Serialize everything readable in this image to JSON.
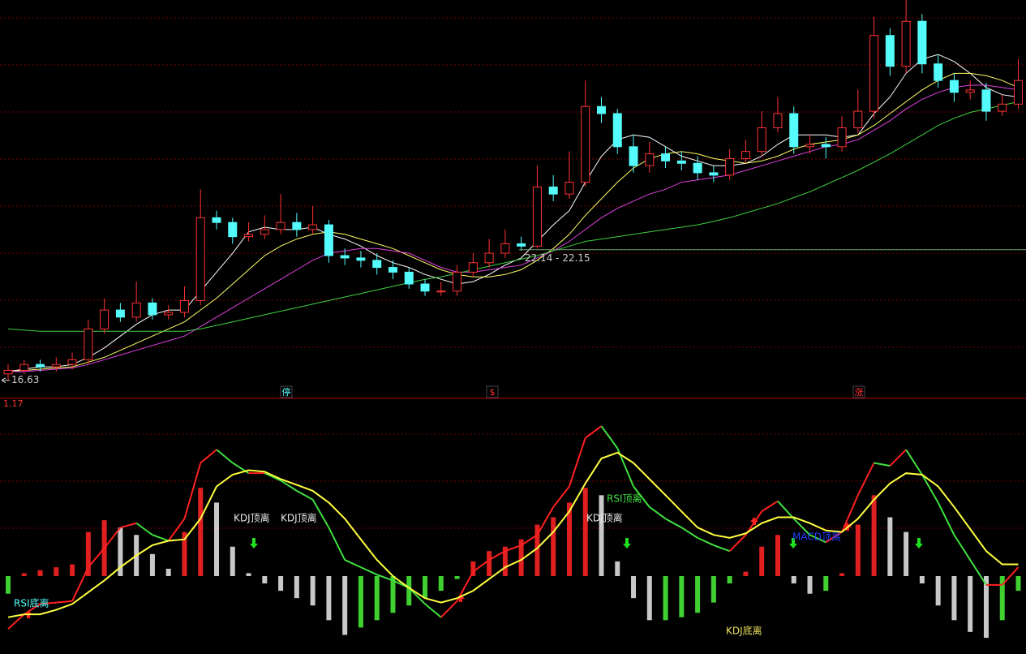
{
  "chart_data": [
    {
      "type": "candlestick",
      "open": [
        16.9,
        17.05,
        17.3,
        17.2,
        17.3,
        17.5,
        18.8,
        19.6,
        19.3,
        19.9,
        19.4,
        19.5,
        20.0,
        23.5,
        23.3,
        22.7,
        22.8,
        23.0,
        23.3,
        23.0,
        23.2,
        21.9,
        21.8,
        21.7,
        21.4,
        21.2,
        20.7,
        20.4,
        20.4,
        21.2,
        21.6,
        22.0,
        22.4,
        22.3,
        24.8,
        24.5,
        25.0,
        28.2,
        27.9,
        26.5,
        25.7,
        26.2,
        25.9,
        25.8,
        25.4,
        25.3,
        26.0,
        26.3,
        27.3,
        27.9,
        26.5,
        26.6,
        26.5,
        27.3,
        28.0,
        31.2,
        29.9,
        31.8,
        30.0,
        29.3,
        28.8,
        28.9,
        28.0,
        28.3
      ],
      "high": [
        17.3,
        17.5,
        17.5,
        17.6,
        17.8,
        19.2,
        20.1,
        19.9,
        20.8,
        20.1,
        19.8,
        20.6,
        24.7,
        23.8,
        23.5,
        23.3,
        23.6,
        24.5,
        23.7,
        24.0,
        23.4,
        22.2,
        22.1,
        22.0,
        21.7,
        21.4,
        20.9,
        20.8,
        21.5,
        22.0,
        22.6,
        23.0,
        22.7,
        25.7,
        25.3,
        26.3,
        29.3,
        28.6,
        28.1,
        27.0,
        26.7,
        26.5,
        26.3,
        26.1,
        25.7,
        26.4,
        26.8,
        28.0,
        28.6,
        28.2,
        27.0,
        26.9,
        27.8,
        28.9,
        32.0,
        31.5,
        32.7,
        32.1,
        30.4,
        29.6,
        29.3,
        29.2,
        28.7,
        30.2
      ],
      "low": [
        16.63,
        16.9,
        17.0,
        17.0,
        17.1,
        17.3,
        18.6,
        19.1,
        19.1,
        19.2,
        19.2,
        19.3,
        19.8,
        23.0,
        22.4,
        22.5,
        22.6,
        22.8,
        22.7,
        22.8,
        21.6,
        21.5,
        21.4,
        21.1,
        20.9,
        20.5,
        20.2,
        20.2,
        20.2,
        21.0,
        21.4,
        21.8,
        22.1,
        22.2,
        24.2,
        24.3,
        24.8,
        27.5,
        26.2,
        25.4,
        25.4,
        25.6,
        25.5,
        25.1,
        25.0,
        25.1,
        25.8,
        26.1,
        27.1,
        26.2,
        26.2,
        26.0,
        26.3,
        27.1,
        27.7,
        29.5,
        29.6,
        29.6,
        29.0,
        28.4,
        28.5,
        27.6,
        27.8,
        28.1
      ],
      "close": [
        17.05,
        17.3,
        17.2,
        17.3,
        17.5,
        18.8,
        19.6,
        19.3,
        19.9,
        19.4,
        19.5,
        20.0,
        23.5,
        23.3,
        22.7,
        22.8,
        23.0,
        23.3,
        23.0,
        23.2,
        21.9,
        21.8,
        21.7,
        21.4,
        21.2,
        20.7,
        20.4,
        20.4,
        21.2,
        21.6,
        22.0,
        22.4,
        22.3,
        24.8,
        24.5,
        25.0,
        28.2,
        27.9,
        26.5,
        25.7,
        26.2,
        25.9,
        25.8,
        25.4,
        25.3,
        26.0,
        26.3,
        27.3,
        27.9,
        26.5,
        26.6,
        26.5,
        27.3,
        28.0,
        31.2,
        29.9,
        31.8,
        30.0,
        29.3,
        28.8,
        28.9,
        28.0,
        28.3,
        29.3
      ],
      "up_color": "#ff3232",
      "down_color": "#54fcfc",
      "ylim": [
        15.9,
        32.7
      ],
      "lines": [
        {
          "color": "#ffffff",
          "values": [
            17.0,
            17.1,
            17.2,
            17.2,
            17.3,
            17.6,
            18.0,
            18.5,
            19.0,
            19.4,
            19.6,
            19.6,
            20.4,
            21.2,
            22.0,
            22.9,
            23.1,
            23.0,
            23.0,
            23.1,
            22.8,
            22.6,
            22.3,
            21.9,
            21.6,
            21.4,
            21.1,
            20.9,
            20.7,
            20.8,
            21.1,
            21.5,
            21.8,
            22.5,
            23.2,
            23.8,
            25.0,
            26.1,
            26.8,
            27.0,
            26.9,
            26.5,
            26.1,
            25.9,
            25.7,
            25.7,
            25.8,
            26.1,
            26.6,
            27.0,
            27.0,
            27.0,
            26.9,
            27.0,
            27.9,
            28.6,
            29.6,
            30.2,
            30.4,
            30.1,
            29.6,
            29.0,
            28.7,
            28.6
          ]
        },
        {
          "color": "#ffff66",
          "values": [
            17.0,
            17.05,
            17.1,
            17.15,
            17.2,
            17.4,
            17.6,
            17.9,
            18.2,
            18.5,
            18.8,
            19.1,
            19.6,
            20.1,
            20.7,
            21.3,
            21.9,
            22.3,
            22.6,
            22.8,
            22.9,
            22.8,
            22.6,
            22.4,
            22.2,
            21.9,
            21.6,
            21.3,
            21.1,
            21.0,
            21.0,
            21.1,
            21.3,
            21.7,
            22.2,
            22.8,
            23.6,
            24.3,
            25.0,
            25.6,
            26.0,
            26.2,
            26.3,
            26.2,
            26.0,
            25.9,
            25.8,
            25.9,
            26.1,
            26.4,
            26.6,
            26.7,
            26.8,
            27.0,
            27.4,
            27.9,
            28.4,
            28.9,
            29.3,
            29.6,
            29.6,
            29.5,
            29.3,
            29.0
          ]
        },
        {
          "color": "#e040e0",
          "values": [
            17.0,
            17.0,
            17.05,
            17.1,
            17.15,
            17.3,
            17.5,
            17.7,
            17.9,
            18.1,
            18.3,
            18.5,
            18.9,
            19.3,
            19.7,
            20.1,
            20.5,
            20.9,
            21.3,
            21.7,
            22.0,
            22.1,
            22.2,
            22.2,
            22.1,
            22.0,
            21.7,
            21.4,
            21.2,
            21.2,
            21.3,
            21.4,
            21.5,
            21.8,
            22.1,
            22.5,
            23.0,
            23.5,
            23.9,
            24.2,
            24.5,
            24.7,
            25.0,
            25.1,
            25.2,
            25.3,
            25.5,
            25.7,
            25.9,
            26.1,
            26.3,
            26.5,
            26.6,
            26.8,
            27.2,
            27.6,
            28.1,
            28.5,
            28.8,
            29.0,
            29.1,
            29.1,
            29.0,
            28.9
          ]
        },
        {
          "color": "#40d040",
          "values": [
            18.8,
            18.75,
            18.7,
            18.7,
            18.7,
            18.7,
            18.7,
            18.7,
            18.7,
            18.7,
            18.7,
            18.7,
            18.8,
            18.95,
            19.1,
            19.25,
            19.4,
            19.55,
            19.7,
            19.85,
            20.0,
            20.15,
            20.3,
            20.45,
            20.6,
            20.75,
            20.9,
            21.0,
            21.15,
            21.3,
            21.45,
            21.6,
            21.75,
            21.9,
            22.1,
            22.3,
            22.5,
            22.6,
            22.7,
            22.8,
            22.9,
            23.0,
            23.1,
            23.2,
            23.35,
            23.5,
            23.7,
            23.9,
            24.1,
            24.35,
            24.6,
            24.9,
            25.2,
            25.5,
            25.85,
            26.2,
            26.6,
            27.0,
            27.4,
            27.7,
            27.95,
            28.1,
            28.25,
            28.4
          ]
        }
      ],
      "low_label": 16.63,
      "level": 22.15,
      "level_label": "22.14 - 22.15",
      "level_color": "#70a070",
      "flags": [
        "停",
        "$",
        "涨"
      ]
    },
    {
      "type": "oscillator",
      "ylim": [
        -0.53,
        1.17
      ],
      "values": [
        -0.12,
        0.02,
        0.04,
        0.06,
        0.08,
        0.3,
        0.38,
        0.33,
        0.28,
        0.15,
        0.05,
        0.3,
        0.6,
        0.5,
        0.2,
        0.02,
        -0.05,
        -0.1,
        -0.15,
        -0.2,
        -0.3,
        -0.4,
        -0.35,
        -0.3,
        -0.25,
        -0.2,
        -0.15,
        -0.1,
        -0.02,
        0.1,
        0.17,
        0.2,
        0.25,
        0.35,
        0.4,
        0.5,
        0.6,
        0.55,
        0.1,
        -0.15,
        -0.3,
        -0.3,
        -0.28,
        -0.25,
        -0.18,
        -0.05,
        0.03,
        0.2,
        0.28,
        -0.05,
        -0.12,
        -0.1,
        0.02,
        0.35,
        0.55,
        0.4,
        0.3,
        -0.05,
        -0.2,
        -0.3,
        -0.38,
        -0.42,
        -0.3,
        -0.1
      ],
      "bar_colors": [
        "#40d030",
        "#e02020",
        "#e02020",
        "#e02020",
        "#e02020",
        "#e02020",
        "#e02020",
        "#c8c8c8",
        "#c8c8c8",
        "#c8c8c8",
        "#c8c8c8",
        "#e02020",
        "#e02020",
        "#c8c8c8",
        "#c8c8c8",
        "#c8c8c8",
        "#c8c8c8",
        "#c8c8c8",
        "#c8c8c8",
        "#c8c8c8",
        "#c8c8c8",
        "#c8c8c8",
        "#40d030",
        "#40d030",
        "#40d030",
        "#40d030",
        "#40d030",
        "#40d030",
        "#40d030",
        "#e02020",
        "#e02020",
        "#e02020",
        "#e02020",
        "#e02020",
        "#e02020",
        "#e02020",
        "#e02020",
        "#c8c8c8",
        "#c8c8c8",
        "#c8c8c8",
        "#c8c8c8",
        "#40d030",
        "#40d030",
        "#40d030",
        "#40d030",
        "#40d030",
        "#e02020",
        "#e02020",
        "#e02020",
        "#c8c8c8",
        "#c8c8c8",
        "#40d030",
        "#e02020",
        "#e02020",
        "#e02020",
        "#c8c8c8",
        "#c8c8c8",
        "#c8c8c8",
        "#c8c8c8",
        "#c8c8c8",
        "#c8c8c8",
        "#c8c8c8",
        "#40d030",
        "#40d030"
      ],
      "series": [
        {
          "rise_color": "#ff2020",
          "fall_color": "#40e040",
          "values": [
            -0.36,
            -0.26,
            -0.19,
            -0.18,
            -0.17,
            0.06,
            0.19,
            0.33,
            0.36,
            0.28,
            0.24,
            0.39,
            0.77,
            0.86,
            0.77,
            0.7,
            0.7,
            0.65,
            0.58,
            0.52,
            0.33,
            0.11,
            0.06,
            0.01,
            -0.03,
            -0.08,
            -0.19,
            -0.28,
            -0.17,
            0.03,
            0.11,
            0.17,
            0.21,
            0.28,
            0.47,
            0.61,
            0.94,
            1.02,
            0.87,
            0.61,
            0.47,
            0.39,
            0.33,
            0.26,
            0.21,
            0.17,
            0.28,
            0.44,
            0.51,
            0.39,
            0.28,
            0.23,
            0.3,
            0.55,
            0.77,
            0.75,
            0.86,
            0.69,
            0.5,
            0.28,
            0.11,
            -0.06,
            -0.06,
            0.06
          ]
        },
        {
          "color": "#ffff40",
          "values": [
            -0.28,
            -0.26,
            -0.26,
            -0.23,
            -0.19,
            -0.11,
            -0.03,
            0.06,
            0.14,
            0.21,
            0.24,
            0.25,
            0.39,
            0.61,
            0.69,
            0.72,
            0.71,
            0.66,
            0.62,
            0.58,
            0.5,
            0.39,
            0.25,
            0.11,
            0,
            -0.08,
            -0.15,
            -0.18,
            -0.15,
            -0.1,
            -0.02,
            0.06,
            0.11,
            0.19,
            0.3,
            0.44,
            0.63,
            0.8,
            0.84,
            0.77,
            0.66,
            0.55,
            0.44,
            0.33,
            0.28,
            0.26,
            0.29,
            0.36,
            0.4,
            0.4,
            0.36,
            0.31,
            0.3,
            0.39,
            0.52,
            0.63,
            0.7,
            0.69,
            0.61,
            0.47,
            0.32,
            0.17,
            0.08,
            0.08
          ]
        }
      ],
      "annotations": [
        "RSI底离",
        "KDJ顶离",
        "KDJ顶离",
        "RSI顶离",
        "KDJ顶离",
        "MACD顶离",
        "KDJ底离"
      ]
    }
  ]
}
